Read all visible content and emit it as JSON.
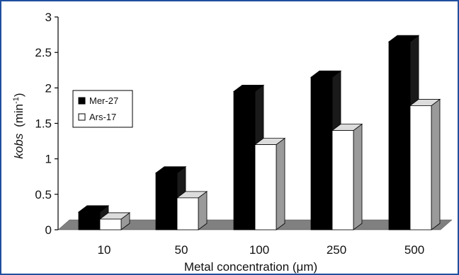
{
  "chart_data": {
    "type": "bar",
    "style": "3d",
    "categories": [
      "10",
      "50",
      "100",
      "250",
      "500"
    ],
    "series": [
      {
        "name": "Mer-27",
        "color": "#000000",
        "values": [
          0.25,
          0.8,
          1.95,
          2.15,
          2.65
        ]
      },
      {
        "name": "Ars-17",
        "color": "#ffffff",
        "values": [
          0.15,
          0.45,
          1.2,
          1.4,
          1.75
        ]
      }
    ],
    "ylabel_main": "kobs",
    "ylabel_unit": "(min",
    "ylabel_sup": "-1",
    "ylabel_close": ")",
    "xlabel": "Metal concentration (μm)",
    "ylim": [
      0,
      3
    ],
    "yticks": [
      "0",
      "0.5",
      "1",
      "1.5",
      "2",
      "2.5",
      "3"
    ],
    "yticks_values": [
      0,
      0.5,
      1,
      1.5,
      2,
      2.5,
      3
    ],
    "floor_color": "#808080",
    "legend_position": "left",
    "grid": false
  }
}
